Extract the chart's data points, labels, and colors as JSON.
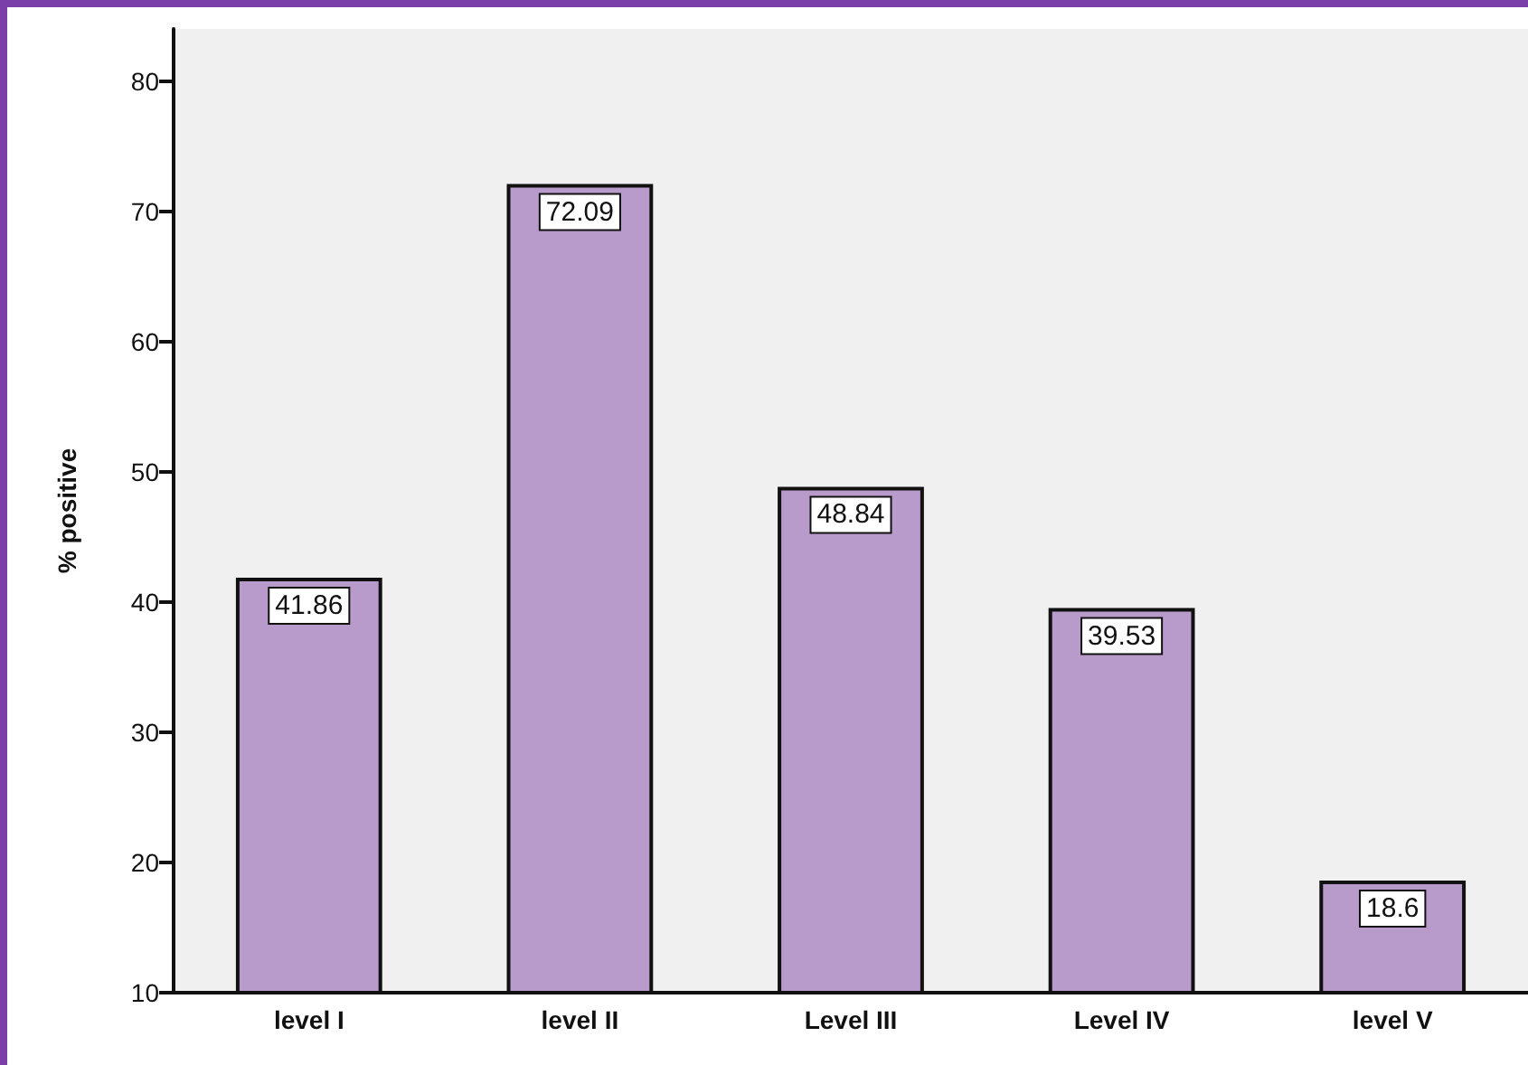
{
  "chart_data": {
    "type": "bar",
    "ylabel": "% positive",
    "categories": [
      "level I",
      "level II",
      "Level III",
      "Level IV",
      "level V"
    ],
    "values": [
      41.86,
      72.09,
      48.84,
      39.53,
      18.6
    ],
    "color": "#b89bcb",
    "ylim": [
      10,
      84
    ],
    "yticks": [
      10,
      20,
      30,
      40,
      50,
      60,
      70,
      80
    ],
    "grid": false,
    "data_labels": true
  }
}
